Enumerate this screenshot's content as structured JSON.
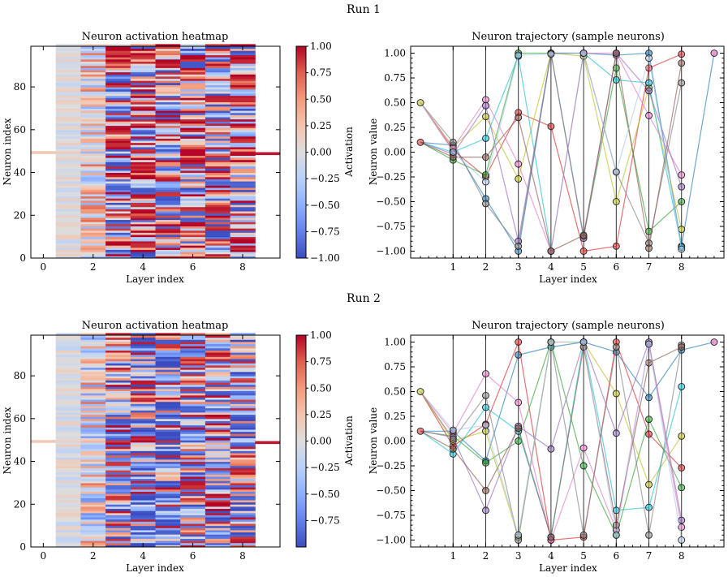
{
  "figure": {
    "runs": [
      {
        "title": "Run 1",
        "heatmap": {
          "title": "Neuron activation heatmap",
          "xlabel": "Layer index",
          "ylabel": "Neuron index"
        },
        "colorbar": {
          "label": "Activation",
          "ticks": [
            "1.00",
            "0.75",
            "0.50",
            "0.25",
            "0.00",
            "−0.25",
            "−0.50",
            "−0.75",
            "−1.00"
          ]
        },
        "trajectory": {
          "title": "Neuron trajectory (sample neurons)",
          "xlabel": "Layer index",
          "ylabel": "Neuron value"
        }
      },
      {
        "title": "Run 2",
        "heatmap": {
          "title": "Neuron activation heatmap",
          "xlabel": "Layer index",
          "ylabel": "Neuron index"
        },
        "colorbar": {
          "label": "Activation",
          "ticks": [
            "1.00",
            "0.75",
            "0.50",
            "0.25",
            "0.00",
            "−0.25",
            "−0.50",
            "−0.75"
          ]
        },
        "trajectory": {
          "title": "Neuron trajectory (sample neurons)",
          "xlabel": "Layer index",
          "ylabel": "Neuron value"
        }
      }
    ]
  },
  "chart_data": [
    {
      "type": "heatmap",
      "panel": "Run 1 left",
      "title": "Neuron activation heatmap",
      "xlabel": "Layer index",
      "ylabel": "Neuron index",
      "xticks": [
        0,
        2,
        4,
        6,
        8
      ],
      "yticks": [
        0,
        20,
        40,
        60,
        80
      ],
      "xlim": [
        -0.5,
        9.5
      ],
      "ylim": [
        0,
        99
      ],
      "colormap": "coolwarm",
      "color_range": [
        -1,
        1
      ],
      "colorbar_label": "Activation",
      "colorbar_ticks": [
        -1.0,
        -0.75,
        -0.5,
        -0.25,
        0.0,
        0.25,
        0.5,
        0.75,
        1.0
      ],
      "columns": [
        {
          "layer": 0,
          "values": "single row",
          "row": 49.5,
          "value": 0.2
        },
        {
          "layer": 1,
          "mean": 0.0,
          "spread": 0.2
        },
        {
          "layer": 2,
          "mean": 0.1,
          "spread": 0.6
        },
        {
          "layer": 3,
          "mean": 0.2,
          "spread": 1.0
        },
        {
          "layer": 4,
          "mean": 0.6,
          "spread": 1.0
        },
        {
          "layer": 5,
          "mean": 0.2,
          "spread": 1.0
        },
        {
          "layer": 6,
          "mean": 0.4,
          "spread": 1.0
        },
        {
          "layer": 7,
          "mean": 0.1,
          "spread": 1.0
        },
        {
          "layer": 8,
          "mean": 0.3,
          "spread": 1.0
        },
        {
          "layer": 9,
          "values": "single row",
          "row": 49,
          "value": 0.95
        }
      ]
    },
    {
      "type": "line",
      "panel": "Run 1 right",
      "title": "Neuron trajectory (sample neurons)",
      "xlabel": "Layer index",
      "ylabel": "Neuron value",
      "xticks": [
        1,
        2,
        3,
        4,
        5,
        6,
        7,
        8
      ],
      "yticks": [
        -1.0,
        -0.75,
        -0.5,
        -0.25,
        0.0,
        0.25,
        0.5,
        0.75,
        1.0
      ],
      "xlim": [
        -0.3,
        9.3
      ],
      "ylim": [
        -1.07,
        1.07
      ],
      "vertical_lines_at": [
        1,
        2,
        3,
        4,
        5,
        6,
        7,
        8
      ],
      "input_points": [
        {
          "x": 0,
          "y": 0.1
        },
        {
          "x": 0,
          "y": 0.5
        }
      ],
      "output_point": {
        "x": 9,
        "y": 1.0
      },
      "series": [
        {
          "color": "#1f77b4",
          "values": [
            0.07,
            -0.47,
            -1.0,
            1.0,
            1.0,
            0.98,
            1.0,
            -0.95
          ]
        },
        {
          "color": "#d62728",
          "values": [
            0.02,
            -0.25,
            0.4,
            0.26,
            -1.0,
            -0.95,
            0.85,
            0.99
          ]
        },
        {
          "color": "#2ca02c",
          "values": [
            -0.08,
            -0.23,
            1.0,
            1.0,
            -0.85,
            0.85,
            -0.8,
            -0.5
          ]
        },
        {
          "color": "#bcbd22",
          "values": [
            0.05,
            0.36,
            -0.27,
            1.0,
            0.97,
            -0.5,
            0.65,
            -0.78
          ]
        },
        {
          "color": "#17becf",
          "values": [
            0.0,
            0.14,
            0.97,
            -1.0,
            1.0,
            0.73,
            0.7,
            -0.96
          ]
        },
        {
          "color": "#e377c2",
          "values": [
            0.04,
            0.53,
            -0.12,
            -1.0,
            1.0,
            1.0,
            0.37,
            -0.23
          ]
        },
        {
          "color": "#9467bd",
          "values": [
            -0.02,
            0.47,
            -0.9,
            1.0,
            -0.87,
            1.0,
            0.62,
            -0.35
          ]
        },
        {
          "color": "#7f7f7f",
          "values": [
            0.1,
            -0.52,
            -0.95,
            1.0,
            1.0,
            -0.2,
            -0.92,
            0.7
          ]
        },
        {
          "color": "#8c564b",
          "values": [
            -0.05,
            -0.05,
            0.35,
            -1.0,
            -0.84,
            1.0,
            -0.97,
            0.9
          ]
        },
        {
          "color": "#aec7e8",
          "values": [
            0.0,
            -0.3,
            0.98,
            0.99,
            1.0,
            -0.2,
            0.95,
            -0.98
          ]
        }
      ]
    },
    {
      "type": "heatmap",
      "panel": "Run 2 left",
      "title": "Neuron activation heatmap",
      "xlabel": "Layer index",
      "ylabel": "Neuron index",
      "xticks": [
        0,
        2,
        4,
        6,
        8
      ],
      "yticks": [
        0,
        20,
        40,
        60,
        80
      ],
      "xlim": [
        -0.5,
        9.5
      ],
      "ylim": [
        0,
        99
      ],
      "colormap": "coolwarm",
      "color_range": [
        -1,
        1
      ],
      "colorbar_label": "Activation",
      "colorbar_ticks": [
        -0.75,
        -0.5,
        -0.25,
        0.0,
        0.25,
        0.5,
        0.75,
        1.0
      ],
      "columns": [
        {
          "layer": 0,
          "values": "single row",
          "row": 49.5,
          "value": 0.2
        },
        {
          "layer": 1,
          "mean": 0.0,
          "spread": 0.2
        },
        {
          "layer": 2,
          "mean": 0.0,
          "spread": 0.7
        },
        {
          "layer": 3,
          "mean": 0.0,
          "spread": 1.0
        },
        {
          "layer": 4,
          "mean": -0.3,
          "spread": 1.0
        },
        {
          "layer": 5,
          "mean": -0.3,
          "spread": 1.0
        },
        {
          "layer": 6,
          "mean": 0.0,
          "spread": 1.0
        },
        {
          "layer": 7,
          "mean": 0.1,
          "spread": 1.0
        },
        {
          "layer": 8,
          "mean": -0.1,
          "spread": 1.0
        },
        {
          "layer": 9,
          "values": "single row",
          "row": 49,
          "value": 0.95
        }
      ]
    },
    {
      "type": "line",
      "panel": "Run 2 right",
      "title": "Neuron trajectory (sample neurons)",
      "xlabel": "Layer index",
      "ylabel": "Neuron value",
      "xticks": [
        1,
        2,
        3,
        4,
        5,
        6,
        7,
        8
      ],
      "yticks": [
        -1.0,
        -0.75,
        -0.5,
        -0.25,
        0.0,
        0.25,
        0.5,
        0.75,
        1.0
      ],
      "xlim": [
        -0.3,
        9.3
      ],
      "ylim": [
        -1.07,
        1.07
      ],
      "vertical_lines_at": [
        1,
        2,
        3,
        4,
        5,
        6,
        7,
        8
      ],
      "input_points": [
        {
          "x": 0,
          "y": 0.1
        },
        {
          "x": 0,
          "y": 0.5
        }
      ],
      "output_point": {
        "x": 9,
        "y": 1.0
      },
      "series": [
        {
          "color": "#1f77b4",
          "values": [
            0.1,
            -0.2,
            0.87,
            0.95,
            1.0,
            0.9,
            0.44,
            0.92
          ]
        },
        {
          "color": "#d62728",
          "values": [
            -0.05,
            0.17,
            1.0,
            -1.0,
            -0.97,
            1.0,
            0.07,
            -0.27
          ]
        },
        {
          "color": "#2ca02c",
          "values": [
            0.05,
            -0.22,
            0.0,
            1.0,
            -0.25,
            -0.95,
            0.22,
            -0.47
          ]
        },
        {
          "color": "#bcbd22",
          "values": [
            0.0,
            0.1,
            -0.97,
            1.0,
            1.0,
            0.48,
            -0.44,
            0.05
          ]
        },
        {
          "color": "#17becf",
          "values": [
            -0.13,
            0.34,
            0.1,
            -0.97,
            1.0,
            -0.7,
            -0.67,
            0.55
          ]
        },
        {
          "color": "#e377c2",
          "values": [
            0.08,
            0.68,
            0.39,
            -1.0,
            -0.07,
            -0.9,
            0.98,
            -0.87
          ]
        },
        {
          "color": "#9467bd",
          "values": [
            0.04,
            -0.7,
            0.15,
            -0.08,
            1.0,
            0.08,
            1.0,
            -0.8
          ]
        },
        {
          "color": "#7f7f7f",
          "values": [
            0.02,
            0.46,
            -1.0,
            1.0,
            -0.95,
            0.95,
            -0.95,
            0.97
          ]
        },
        {
          "color": "#8c564b",
          "values": [
            -0.08,
            -0.5,
            0.13,
            -0.97,
            0.95,
            -0.85,
            0.79,
            0.95
          ]
        },
        {
          "color": "#aec7e8",
          "values": [
            0.11,
            0.16,
            -0.95,
            1.0,
            1.0,
            -0.95,
            0.98,
            -1.0
          ]
        }
      ]
    }
  ]
}
